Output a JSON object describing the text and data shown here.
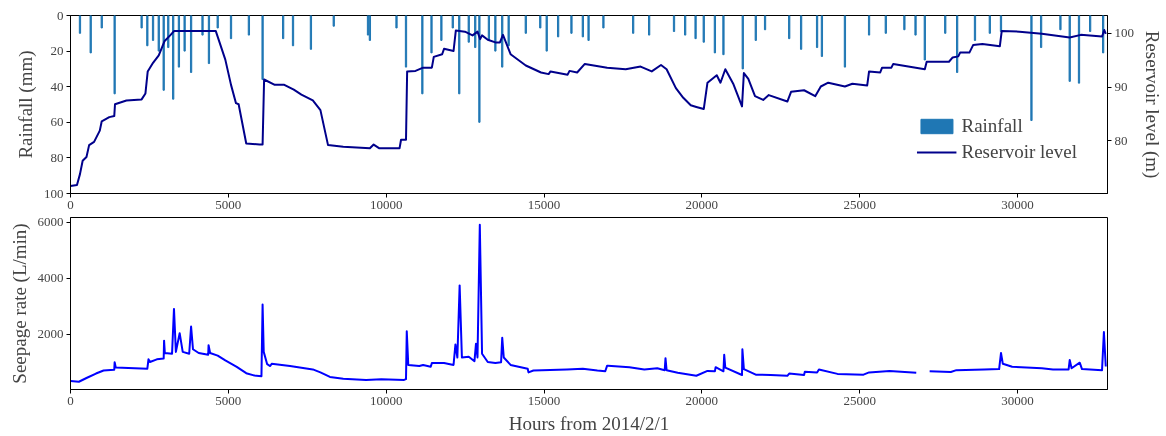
{
  "chart_data": [
    {
      "type": "bar",
      "ylabel": "Rainfall (mm)",
      "y2label": "Reservoir level (m)",
      "xlim": [
        0,
        32850
      ],
      "xticks": [
        0,
        5000,
        10000,
        15000,
        20000,
        25000,
        30000
      ],
      "ylim": [
        100,
        0
      ],
      "yticks": [
        0,
        20,
        40,
        60,
        80,
        100
      ],
      "y2lim": [
        70.2,
        103.3
      ],
      "y2ticks": [
        80,
        90,
        100
      ],
      "legend": "bottom right",
      "grid": false,
      "series": [
        {
          "name": "Rainfall",
          "type": "bar",
          "color": "#1f77b4",
          "x": [
            300,
            640,
            990,
            1398,
            2253,
            2434,
            2615,
            2796,
            2952,
            3097,
            3253,
            3434,
            3615,
            3820,
            4182,
            4386,
            4663,
            5085,
            5651,
            6085,
            6736,
            7049,
            7616,
            8339,
            9424,
            9484,
            10327,
            10628,
            11146,
            11436,
            11749,
            12110,
            12315,
            12616,
            12821,
            12953,
            13254,
            13459,
            13676,
            13880,
            14423,
            14881,
            15085,
            15447,
            15869,
            16230,
            16411,
            16882,
            17824,
            18330,
            19118,
            19471,
            19801,
            20060,
            20413,
            20684,
            21296,
            21708,
            22002,
            22767,
            23144,
            23650,
            23803,
            24532,
            25297,
            25827,
            26416,
            26769,
            27063,
            27710,
            28087,
            28652,
            29122,
            29476,
            30441,
            30747,
            31359,
            31653,
            31947,
            32300,
            32712
          ],
          "values": [
            10,
            21,
            7,
            44,
            7,
            17,
            14,
            20,
            42,
            18,
            47,
            29,
            20,
            32,
            11,
            27,
            7,
            13,
            11,
            36,
            13,
            17,
            19,
            6,
            11,
            14,
            7,
            29,
            44,
            21,
            14,
            7,
            44,
            15,
            18,
            60,
            14,
            20,
            29,
            17,
            10,
            7,
            20,
            12,
            10,
            12,
            14,
            7,
            10,
            11,
            9,
            11,
            13,
            15,
            21,
            22,
            30,
            14,
            8,
            13,
            19,
            18,
            23,
            29,
            11,
            10,
            8,
            11,
            25,
            10,
            32,
            14,
            10,
            9,
            59,
            18,
            8,
            37,
            38,
            9,
            21
          ]
        },
        {
          "name": "Reservoir level",
          "type": "line",
          "axis": "y2",
          "color": "#00008b",
          "x": [
            0,
            205,
            300,
            385,
            506,
            590,
            747,
            928,
            988,
            1229,
            1386,
            1410,
            1771,
            2253,
            2374,
            2446,
            2615,
            2796,
            2976,
            3157,
            3278,
            4603,
            4904,
            5085,
            5242,
            5326,
            5567,
            5989,
            6085,
            6133,
            6471,
            6772,
            7073,
            7314,
            7676,
            7917,
            8158,
            8640,
            9484,
            9604,
            9785,
            10423,
            10471,
            10628,
            10664,
            10929,
            11170,
            11447,
            11508,
            11773,
            11833,
            12134,
            12206,
            12495,
            12736,
            12893,
            12977,
            13037,
            13218,
            13459,
            13603,
            13700,
            13941,
            14423,
            14905,
            15146,
            15206,
            15748,
            15808,
            16049,
            16293,
            17000,
            17588,
            18059,
            18412,
            18706,
            18883,
            19177,
            19412,
            19648,
            19825,
            20060,
            20178,
            20472,
            20590,
            20743,
            21002,
            21272,
            21331,
            21472,
            21684,
            21943,
            22120,
            22708,
            22826,
            23238,
            23591,
            23768,
            24004,
            24532,
            24768,
            25238,
            25297,
            25650,
            25709,
            26004,
            26063,
            27063,
            27122,
            27828,
            27946,
            28123,
            28181,
            28475,
            28593,
            28887,
            29440,
            29499,
            30063,
            30770,
            31653,
            32006,
            32677,
            32748,
            32795
          ],
          "values": [
            71.6,
            71.8,
            73.8,
            76.3,
            77.0,
            79.2,
            79.8,
            81.9,
            83.6,
            84.4,
            84.6,
            86.8,
            87.5,
            87.7,
            88.8,
            92.9,
            94.5,
            95.9,
            98.5,
            99.6,
            100.4,
            100.4,
            95.1,
            90.4,
            87.0,
            86.8,
            79.5,
            79.3,
            79.3,
            91.4,
            90.4,
            90.4,
            89.5,
            88.6,
            87.5,
            85.7,
            79.2,
            78.9,
            78.6,
            79.3,
            78.6,
            78.6,
            80.2,
            80.2,
            92.9,
            93.0,
            93.6,
            93.6,
            95.6,
            96.1,
            97.1,
            96.7,
            100.5,
            100.3,
            99.6,
            100.3,
            98.9,
            99.6,
            98.8,
            98.3,
            98.3,
            99.7,
            96.1,
            94.0,
            92.7,
            92.4,
            92.9,
            92.3,
            93.0,
            92.7,
            94.3,
            93.6,
            93.3,
            93.8,
            92.9,
            94.1,
            93.3,
            89.8,
            88.0,
            86.6,
            86.3,
            85.9,
            90.8,
            92.2,
            90.8,
            93.3,
            90.5,
            86.4,
            92.6,
            91.5,
            88.3,
            87.6,
            88.5,
            87.3,
            89.1,
            89.4,
            88.3,
            90.1,
            90.8,
            90.1,
            90.6,
            90.3,
            92.9,
            92.7,
            93.6,
            93.6,
            94.3,
            93.3,
            94.7,
            94.7,
            95.5,
            95.7,
            96.4,
            96.4,
            97.8,
            98.0,
            97.6,
            100.4,
            100.3,
            99.9,
            99.2,
            99.7,
            99.4,
            100.6,
            99.9
          ]
        }
      ]
    },
    {
      "type": "line",
      "ylabel": "Seepage rate (L/min)",
      "xlabel": "Hours from 2014/2/1",
      "xlim": [
        0,
        32850
      ],
      "xticks": [
        0,
        5000,
        10000,
        15000,
        20000,
        25000,
        30000
      ],
      "ylim": [
        30,
        6170
      ],
      "yticks": [
        2000,
        4000,
        6000
      ],
      "grid": false,
      "series": [
        {
          "color": "#0000ff",
          "x": [
            0,
            265,
            506,
            807,
            1048,
            1386,
            1398,
            1434,
            2434,
            2470,
            2518,
            2735,
            2952,
            2964,
            2988,
            3217,
            3278,
            3338,
            3458,
            3555,
            3760,
            3820,
            3880,
            4061,
            4362,
            4374,
            4422,
            4663,
            4904,
            5266,
            5567,
            5808,
            6049,
            6085,
            6121,
            6230,
            6326,
            6374,
            6953,
            7676,
            7917,
            8218,
            8640,
            9363,
            9845,
            10568,
            10628,
            10652,
            10700,
            11050,
            11170,
            11411,
            11447,
            11833,
            12134,
            12194,
            12255,
            12327,
            12399,
            12616,
            12797,
            12845,
            12893,
            12966,
            13037,
            13218,
            13459,
            13640,
            13676,
            13725,
            13941,
            14483,
            14508,
            14664,
            15725,
            16230,
            16690,
            16940,
            17000,
            17024,
            17705,
            18177,
            18588,
            18824,
            18848,
            18883,
            19236,
            19825,
            20178,
            20413,
            20437,
            20684,
            20708,
            20743,
            21272,
            21284,
            21331,
            21708,
            22178,
            22708,
            22767,
            23238,
            23262,
            23650,
            23709,
            24297,
            25121,
            25297,
            25945,
            26792,
            27000,
            27216,
            27887,
            28063,
            28945,
            29417,
            29476,
            29534,
            29829,
            30770,
            31123,
            31618,
            31653,
            31712,
            31971,
            32042,
            32677,
            32736,
            32795
          ],
          "values": [
            333,
            307,
            440,
            600,
            707,
            733,
            1000,
            813,
            773,
            1107,
            1013,
            1107,
            1133,
            1773,
            1333,
            1307,
            2907,
            1373,
            2040,
            1373,
            1307,
            2280,
            1467,
            1333,
            1267,
            1613,
            1333,
            1240,
            1067,
            840,
            613,
            533,
            507,
            3067,
            1373,
            933,
            867,
            947,
            867,
            747,
            640,
            480,
            413,
            373,
            400,
            373,
            400,
            2107,
            907,
            867,
            907,
            840,
            973,
            973,
            907,
            1640,
            1173,
            3747,
            1173,
            1200,
            1040,
            1667,
            1173,
            5907,
            1307,
            1013,
            973,
            1000,
            1880,
            1173,
            907,
            773,
            640,
            707,
            747,
            773,
            707,
            680,
            880,
            880,
            827,
            747,
            787,
            720,
            1147,
            720,
            627,
            520,
            693,
            680,
            827,
            680,
            1267,
            813,
            547,
            1467,
            760,
            560,
            547,
            520,
            600,
            547,
            667,
            640,
            747,
            587,
            560,
            640,
            693,
            627,
            null,
            680,
            653,
            720,
            747,
            760,
            1333,
            947,
            840,
            787,
            747,
            747,
            1080,
            787,
            987,
            760,
            720,
            2080,
            853
          ]
        }
      ]
    }
  ]
}
